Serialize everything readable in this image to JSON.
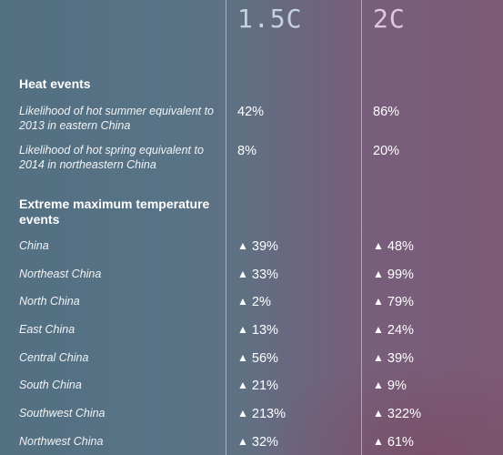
{
  "columns": {
    "c1": "1.5C",
    "c2": "2C"
  },
  "sections": {
    "heat": "Heat events",
    "extreme": "Extreme maximum temperature events"
  },
  "heat_rows": [
    {
      "label": "Likelihood of hot summer equivalent to 2013 in eastern China",
      "c1": "42%",
      "c2": "86%"
    },
    {
      "label": "Likelihood of hot spring equivalent to 2014 in northeastern China",
      "c1": "8%",
      "c2": "20%"
    }
  ],
  "trend_icon": "triangle-up-icon",
  "trend_symbol": "▲",
  "extreme_rows": [
    {
      "label": "China",
      "c1": "39%",
      "c2": "48%"
    },
    {
      "label": "Northeast China",
      "c1": "33%",
      "c2": "99%"
    },
    {
      "label": "North China",
      "c1": "2%",
      "c2": "79%"
    },
    {
      "label": "East China",
      "c1": "13%",
      "c2": "24%"
    },
    {
      "label": "Central China",
      "c1": "56%",
      "c2": "39%"
    },
    {
      "label": "South China",
      "c1": "21%",
      "c2": "9%"
    },
    {
      "label": "Southwest China",
      "c1": "213%",
      "c2": "322%"
    },
    {
      "label": "Northwest China",
      "c1": "32%",
      "c2": "61%"
    }
  ]
}
